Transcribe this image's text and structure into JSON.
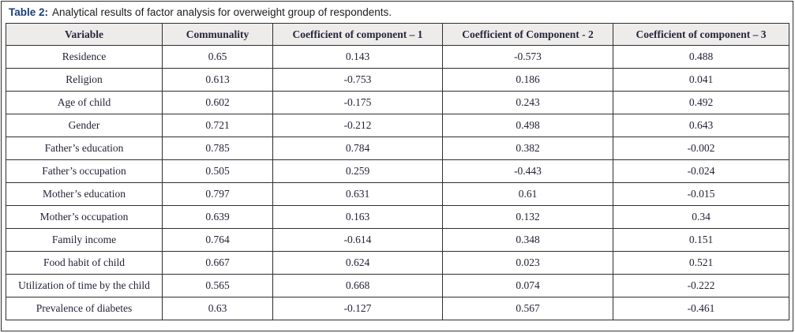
{
  "caption": {
    "label": "Table 2:",
    "text": "Analytical results of factor analysis for overweight group of respondents."
  },
  "colors": {
    "accent_blue": "#1b3d7c",
    "header_background": "#eeeceb",
    "body_text": "#23233a",
    "border": "#2e2e2e"
  },
  "table": {
    "columns": [
      "Variable",
      "Communality",
      "Coefficient of component – 1",
      "Coefficient of Component - 2",
      "Coefficient of component – 3"
    ],
    "rows": [
      [
        "Residence",
        "0.65",
        "0.143",
        "-0.573",
        "0.488"
      ],
      [
        "Religion",
        "0.613",
        "-0.753",
        "0.186",
        "0.041"
      ],
      [
        "Age of child",
        "0.602",
        "-0.175",
        "0.243",
        "0.492"
      ],
      [
        "Gender",
        "0.721",
        "-0.212",
        "0.498",
        "0.643"
      ],
      [
        "Father’s education",
        "0.785",
        "0.784",
        "0.382",
        "-0.002"
      ],
      [
        "Father’s occupation",
        "0.505",
        "0.259",
        "-0.443",
        "-0.024"
      ],
      [
        "Mother’s education",
        "0.797",
        "0.631",
        "0.61",
        "-0.015"
      ],
      [
        "Mother’s occupation",
        "0.639",
        "0.163",
        "0.132",
        "0.34"
      ],
      [
        "Family income",
        "0.764",
        "-0.614",
        "0.348",
        "0.151"
      ],
      [
        "Food habit of child",
        "0.667",
        "0.624",
        "0.023",
        "0.521"
      ],
      [
        "Utilization of time by the child",
        "0.565",
        "0.668",
        "0.074",
        "-0.222"
      ],
      [
        "Prevalence of diabetes",
        "0.63",
        "-0.127",
        "0.567",
        "-0.461"
      ]
    ]
  }
}
